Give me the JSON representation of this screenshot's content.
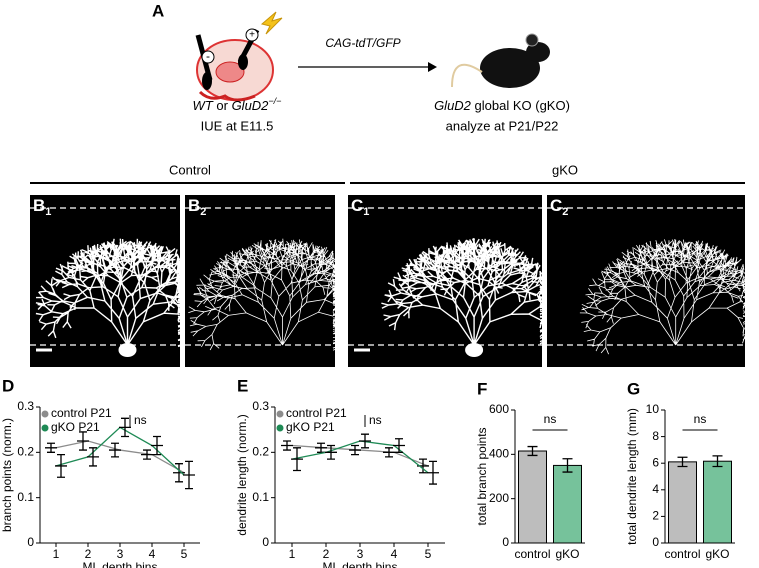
{
  "panel_a": {
    "label": "A",
    "arrow_label": "CAG-tdT/GFP",
    "left_genotype_1": "WT",
    "left_or": " or ",
    "left_genotype_2": "GluD2",
    "left_superscript": "−/−",
    "left_line2": "IUE at E11.5",
    "right_gene": "GluD2",
    "right_rest": " global KO (gKO)",
    "right_line2": "analyze at P21/P22"
  },
  "images": {
    "control": "Control",
    "gko": "gKO",
    "panels": [
      {
        "letter": "B",
        "sub": "1"
      },
      {
        "letter": "B",
        "sub": "2"
      },
      {
        "letter": "C",
        "sub": "1"
      },
      {
        "letter": "C",
        "sub": "2"
      }
    ]
  },
  "chart_data": [
    {
      "type": "line",
      "label": "D",
      "ylabel": "branch points (norm.)",
      "xlabel": "ML depth bins",
      "x": [
        1,
        2,
        3,
        4,
        5
      ],
      "xlim": [
        0.5,
        5.5
      ],
      "xticks": [
        1,
        2,
        3,
        4,
        5
      ],
      "ylim": [
        0,
        0.3
      ],
      "yticks": [
        0,
        0.1,
        0.2,
        0.3
      ],
      "annotation": "ns",
      "series": [
        {
          "name": "control P21",
          "color": "#8c8c8c",
          "values": [
            0.21,
            0.225,
            0.205,
            0.195,
            0.155
          ],
          "errors": [
            0.01,
            0.02,
            0.015,
            0.01,
            0.02
          ]
        },
        {
          "name": "gKO P21",
          "color": "#1e8a55",
          "values": [
            0.17,
            0.19,
            0.255,
            0.215,
            0.15
          ],
          "errors": [
            0.025,
            0.02,
            0.02,
            0.02,
            0.03
          ]
        }
      ]
    },
    {
      "type": "line",
      "label": "E",
      "ylabel": "dendrite length (norm.)",
      "xlabel": "ML depth bins",
      "x": [
        1,
        2,
        3,
        4,
        5
      ],
      "xlim": [
        0.5,
        5.5
      ],
      "xticks": [
        1,
        2,
        3,
        4,
        5
      ],
      "ylim": [
        0,
        0.3
      ],
      "yticks": [
        0,
        0.1,
        0.2,
        0.3
      ],
      "annotation": "ns",
      "series": [
        {
          "name": "control P21",
          "color": "#8c8c8c",
          "values": [
            0.215,
            0.21,
            0.205,
            0.2,
            0.17
          ],
          "errors": [
            0.01,
            0.01,
            0.01,
            0.01,
            0.015
          ]
        },
        {
          "name": "gKO P21",
          "color": "#1e8a55",
          "values": [
            0.185,
            0.2,
            0.225,
            0.215,
            0.155
          ],
          "errors": [
            0.025,
            0.015,
            0.015,
            0.015,
            0.025
          ]
        }
      ]
    },
    {
      "type": "bar",
      "label": "F",
      "ylabel": "total branch points",
      "categories": [
        "control",
        "gKO"
      ],
      "values": [
        415,
        350
      ],
      "errors": [
        20,
        30
      ],
      "colors": [
        "#bdbdbd",
        "#76c29b"
      ],
      "ylim": [
        0,
        600
      ],
      "yticks": [
        0,
        200,
        400,
        600
      ],
      "annotation": "ns"
    },
    {
      "type": "bar",
      "label": "G",
      "ylabel": "total dendrite length (mm)",
      "categories": [
        "control",
        "gKO"
      ],
      "values": [
        6.1,
        6.15
      ],
      "errors": [
        0.35,
        0.4
      ],
      "colors": [
        "#bdbdbd",
        "#76c29b"
      ],
      "ylim": [
        0,
        10
      ],
      "yticks": [
        0,
        2,
        4,
        6,
        8,
        10
      ],
      "annotation": "ns"
    }
  ]
}
